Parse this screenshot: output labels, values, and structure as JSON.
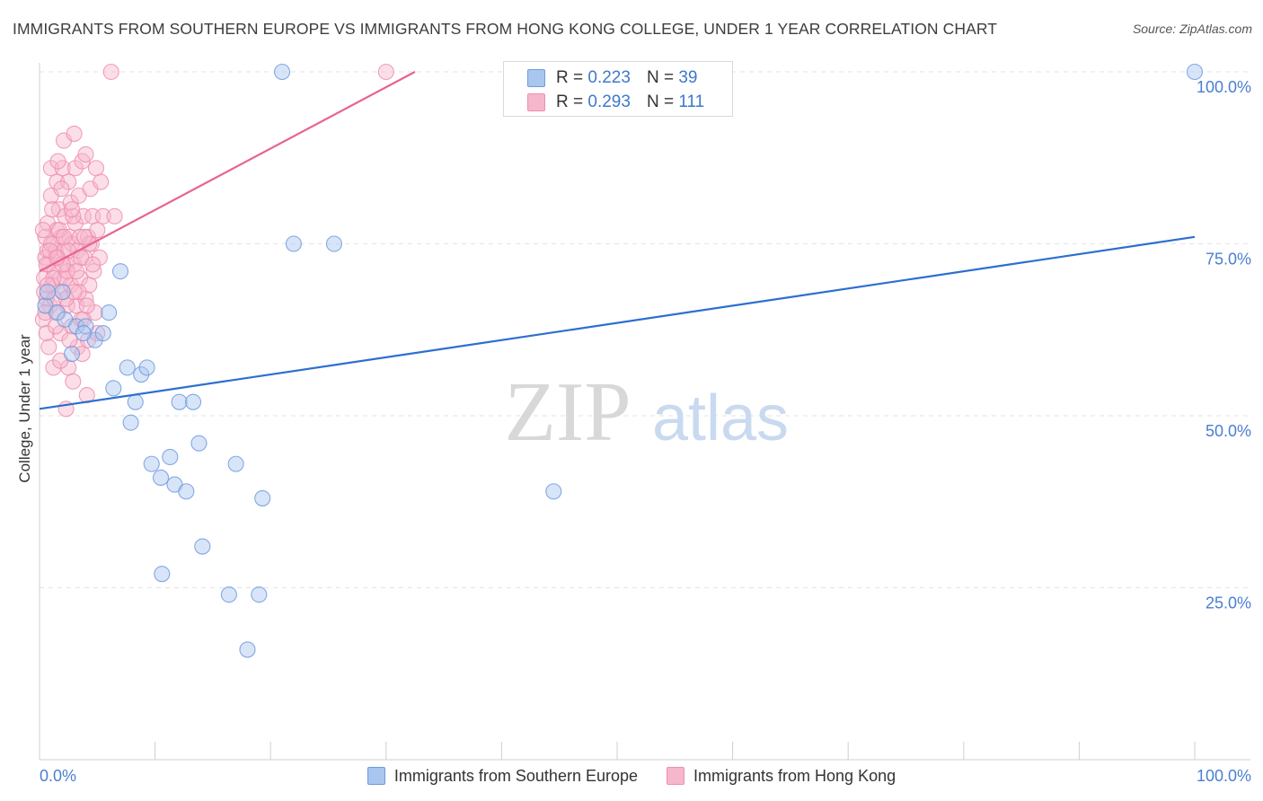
{
  "title": "IMMIGRANTS FROM SOUTHERN EUROPE VS IMMIGRANTS FROM HONG KONG COLLEGE, UNDER 1 YEAR CORRELATION CHART",
  "source": "Source: ZipAtlas.com",
  "watermark": {
    "zip": "ZIP",
    "atlas": "atlas"
  },
  "legend_top": [
    {
      "r_label": "R =",
      "r_value": "0.223",
      "n_label": "N =",
      "n_value": "39"
    },
    {
      "r_label": "R =",
      "r_value": "0.293",
      "n_label": "N =",
      "n_value": "111"
    }
  ],
  "legend_bottom": [
    {
      "label": "Immigrants from Southern Europe"
    },
    {
      "label": "Immigrants from Hong Kong"
    }
  ],
  "colors": {
    "blue_fill": "#a9c6ef",
    "blue_stroke": "#6f9bde",
    "blue_line": "#2c6fcf",
    "pink_fill": "#f6b6cb",
    "pink_stroke": "#ee8fb0",
    "pink_line": "#e8648f",
    "tick_label": "#4a7fd0",
    "grid": "#e3e3e3"
  },
  "chart_data": {
    "type": "scatter",
    "title": "IMMIGRANTS FROM SOUTHERN EUROPE VS IMMIGRANTS FROM HONG KONG COLLEGE, UNDER 1 YEAR CORRELATION CHART",
    "xlabel": "",
    "ylabel": "College, Under 1 year",
    "xlim": [
      0,
      100
    ],
    "ylim": [
      0,
      100
    ],
    "x_tick_labels": [
      {
        "value": 0,
        "label": "0.0%"
      },
      {
        "value": 100,
        "label": "100.0%"
      }
    ],
    "y_tick_labels": [
      {
        "value": 100,
        "label": "100.0%"
      },
      {
        "value": 75,
        "label": "75.0%"
      },
      {
        "value": 50,
        "label": "50.0%"
      },
      {
        "value": 25,
        "label": "25.0%"
      }
    ],
    "series": [
      {
        "name": "Immigrants from Southern Europe",
        "color": "blue",
        "r": 0.223,
        "n": 39,
        "trendline": {
          "x": [
            0,
            100
          ],
          "y": [
            51,
            76
          ]
        },
        "points": [
          [
            0.5,
            66
          ],
          [
            0.7,
            68
          ],
          [
            1.5,
            65
          ],
          [
            2,
            68
          ],
          [
            2.2,
            64
          ],
          [
            2.8,
            59
          ],
          [
            3.2,
            63
          ],
          [
            4,
            63
          ],
          [
            4.8,
            61
          ],
          [
            5.5,
            62
          ],
          [
            6,
            65
          ],
          [
            6.4,
            54
          ],
          [
            7,
            71
          ],
          [
            7.6,
            57
          ],
          [
            7.9,
            49
          ],
          [
            8.3,
            52
          ],
          [
            8.8,
            56
          ],
          [
            9.3,
            57
          ],
          [
            9.7,
            43
          ],
          [
            10.5,
            41
          ],
          [
            10.6,
            27
          ],
          [
            11.3,
            44
          ],
          [
            11.7,
            40
          ],
          [
            12.1,
            52
          ],
          [
            12.7,
            39
          ],
          [
            13.3,
            52
          ],
          [
            13.8,
            46
          ],
          [
            14.1,
            31
          ],
          [
            16.4,
            24
          ],
          [
            17,
            43
          ],
          [
            18,
            16
          ],
          [
            19,
            24
          ],
          [
            19.3,
            38
          ],
          [
            21,
            100
          ],
          [
            22,
            75
          ],
          [
            25.5,
            75
          ],
          [
            44.5,
            39
          ],
          [
            100,
            100
          ],
          [
            3.8,
            62
          ]
        ]
      },
      {
        "name": "Immigrants from Hong Kong",
        "color": "pink",
        "r": 0.293,
        "n": 111,
        "trendline": {
          "x": [
            0,
            32.5
          ],
          "y": [
            71,
            100
          ]
        },
        "points": [
          [
            0.3,
            64
          ],
          [
            0.4,
            70
          ],
          [
            0.5,
            73
          ],
          [
            0.5,
            76
          ],
          [
            0.6,
            67
          ],
          [
            0.6,
            62
          ],
          [
            0.7,
            74
          ],
          [
            0.7,
            78
          ],
          [
            0.8,
            72
          ],
          [
            0.9,
            66
          ],
          [
            1,
            82
          ],
          [
            1,
            86
          ],
          [
            1.1,
            69
          ],
          [
            1.2,
            75
          ],
          [
            1.2,
            57
          ],
          [
            1.3,
            71
          ],
          [
            1.4,
            74
          ],
          [
            1.5,
            84
          ],
          [
            1.5,
            77
          ],
          [
            1.6,
            65
          ],
          [
            1.6,
            73
          ],
          [
            1.7,
            80
          ],
          [
            1.8,
            70
          ],
          [
            1.8,
            62
          ],
          [
            1.9,
            76
          ],
          [
            2,
            86
          ],
          [
            2,
            68
          ],
          [
            2.1,
            74
          ],
          [
            2.1,
            90
          ],
          [
            2.2,
            79
          ],
          [
            2.3,
            72
          ],
          [
            2.3,
            51
          ],
          [
            2.4,
            66
          ],
          [
            2.5,
            84
          ],
          [
            2.5,
            57
          ],
          [
            2.6,
            76
          ],
          [
            2.7,
            69
          ],
          [
            2.7,
            81
          ],
          [
            2.8,
            63
          ],
          [
            2.8,
            75
          ],
          [
            2.9,
            55
          ],
          [
            3,
            91
          ],
          [
            3,
            72
          ],
          [
            3.1,
            86
          ],
          [
            3.1,
            78
          ],
          [
            3.2,
            66
          ],
          [
            3.3,
            74
          ],
          [
            3.3,
            60
          ],
          [
            3.4,
            82
          ],
          [
            3.5,
            70
          ],
          [
            3.5,
            76
          ],
          [
            3.6,
            64
          ],
          [
            3.7,
            87
          ],
          [
            3.7,
            59
          ],
          [
            3.8,
            79
          ],
          [
            3.9,
            73
          ],
          [
            4,
            88
          ],
          [
            4,
            67
          ],
          [
            4.1,
            53
          ],
          [
            4.2,
            76
          ],
          [
            4.2,
            61
          ],
          [
            4.3,
            69
          ],
          [
            4.4,
            83
          ],
          [
            4.5,
            75
          ],
          [
            4.6,
            79
          ],
          [
            4.7,
            71
          ],
          [
            4.8,
            65
          ],
          [
            4.9,
            86
          ],
          [
            5,
            77
          ],
          [
            5,
            62
          ],
          [
            5.2,
            73
          ],
          [
            5.3,
            84
          ],
          [
            5.5,
            79
          ],
          [
            6.5,
            79
          ],
          [
            0.4,
            68
          ],
          [
            0.8,
            60
          ],
          [
            1,
            75
          ],
          [
            1.3,
            67
          ],
          [
            1.7,
            77
          ],
          [
            2.2,
            70
          ],
          [
            2.6,
            61
          ],
          [
            2.9,
            79
          ],
          [
            3.4,
            68
          ],
          [
            3.8,
            64
          ],
          [
            4.3,
            75
          ],
          [
            0.6,
            72
          ],
          [
            1.1,
            80
          ],
          [
            1.9,
            83
          ],
          [
            2.4,
            71
          ],
          [
            3.6,
            73
          ],
          [
            6.2,
            100
          ],
          [
            30,
            100
          ],
          [
            0.5,
            65
          ],
          [
            1.4,
            63
          ],
          [
            2,
            72
          ],
          [
            3.2,
            71
          ],
          [
            4.6,
            72
          ],
          [
            1.6,
            87
          ],
          [
            2.8,
            80
          ],
          [
            0.9,
            74
          ],
          [
            2.3,
            67
          ],
          [
            1.2,
            70
          ],
          [
            0.3,
            77
          ],
          [
            3.9,
            76
          ],
          [
            1.8,
            58
          ],
          [
            2.5,
            74
          ],
          [
            0.7,
            69
          ],
          [
            4.1,
            66
          ],
          [
            1.5,
            73
          ],
          [
            3.0,
            68
          ],
          [
            2.1,
            76
          ]
        ]
      }
    ]
  }
}
